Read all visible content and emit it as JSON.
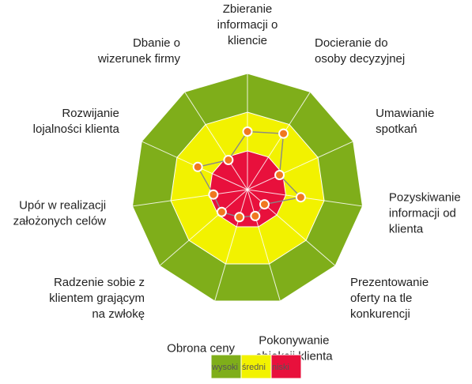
{
  "chart_data": {
    "type": "radar",
    "title": "",
    "axes": [
      "Zbieranie informacji o kliencie",
      "Docieranie do osoby decyzyjnej",
      "Umawianie spotkań",
      "Pozyskiwanie informacji od klienta",
      "Prezentowanie oferty na tle konkurencji",
      "Pokonywanie obiekcji klienta",
      "Obrona ceny",
      "Radzenie sobie z klientem grającym na zwłokę",
      "Upór w realizacji założonych celów",
      "Rozwijanie lojalności klienta",
      "Dbanie o wizerunek firmy"
    ],
    "axis_labels": [
      [
        "Zbieranie",
        "informacji o",
        "kliencie"
      ],
      [
        "Docieranie do",
        "osoby decyzyjnej"
      ],
      [
        "Umawianie",
        "spotkań"
      ],
      [
        "Pozyskiwanie",
        "informacji od",
        "klienta"
      ],
      [
        "Prezentowanie",
        "oferty na tle",
        "konkurencji"
      ],
      [
        "Pokonywanie",
        "obiekcji klienta"
      ],
      [
        "Obrona ceny"
      ],
      [
        "Radzenie sobie z",
        "klientem grającym",
        "na zwłokę"
      ],
      [
        "Upór w realizacji",
        "założonych celów"
      ],
      [
        "Rozwijanie",
        "lojalności klienta"
      ],
      [
        "Dbanie o",
        "wizerunek firmy"
      ]
    ],
    "scale": [
      0,
      3
    ],
    "zones": [
      {
        "name": "wysoki",
        "from": 2,
        "to": 3,
        "color": "#7fae1a"
      },
      {
        "name": "średni",
        "from": 1,
        "to": 2,
        "color": "#f2f200"
      },
      {
        "name": "niski",
        "from": 0,
        "to": 1,
        "color": "#e8103c"
      }
    ],
    "series": [
      {
        "values": [
          1.5,
          1.72,
          0.91,
          1.39,
          0.58,
          0.71,
          0.74,
          0.88,
          0.89,
          1.41,
          0.91
        ],
        "color": "#888888",
        "marker_color": "#f07820"
      }
    ],
    "legend_position": "bottom-center"
  }
}
